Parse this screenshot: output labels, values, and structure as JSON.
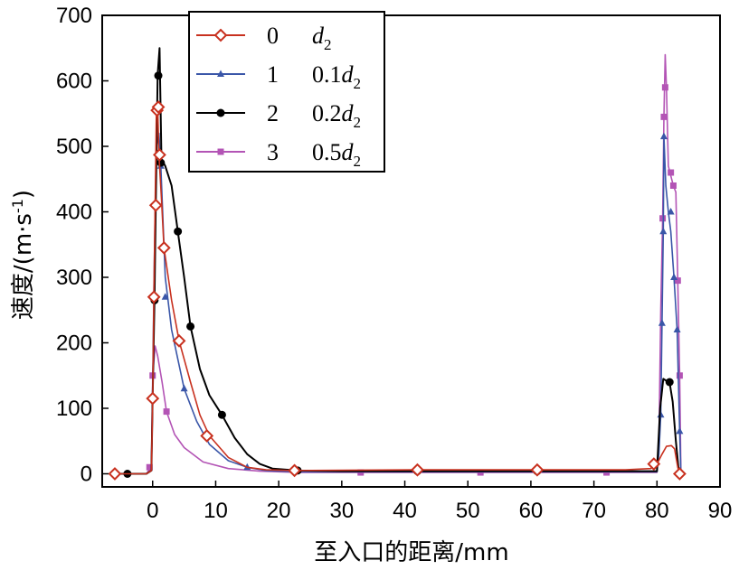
{
  "chart_data": {
    "type": "line",
    "xlabel": "至入口的距离/mm",
    "ylabel_main": "速度/(m·s",
    "ylabel_sup": "-1",
    "ylabel_close": ")",
    "xlim": [
      -8,
      90
    ],
    "ylim": [
      -20,
      700
    ],
    "xticks": [
      0,
      10,
      20,
      30,
      40,
      50,
      60,
      70,
      80,
      90
    ],
    "yticks": [
      0,
      100,
      200,
      300,
      400,
      500,
      600,
      700
    ],
    "legend_position": "top-center",
    "series": [
      {
        "id": "0",
        "coef": "",
        "sub": "2",
        "color": "#c8311f",
        "marker": "diamond",
        "line": [
          [
            -6,
            0
          ],
          [
            -1,
            0
          ],
          [
            -0.2,
            5
          ],
          [
            0,
            115
          ],
          [
            0.2,
            270
          ],
          [
            0.4,
            410
          ],
          [
            0.6,
            555
          ],
          [
            0.8,
            560
          ],
          [
            1,
            487
          ],
          [
            1.4,
            420
          ],
          [
            1.8,
            345
          ],
          [
            3,
            265
          ],
          [
            4.2,
            203
          ],
          [
            6,
            140
          ],
          [
            7.5,
            90
          ],
          [
            9,
            58
          ],
          [
            12,
            25
          ],
          [
            15,
            10
          ],
          [
            18,
            6
          ],
          [
            22.5,
            5
          ],
          [
            42,
            6
          ],
          [
            61,
            6
          ],
          [
            75,
            6
          ],
          [
            79,
            8
          ],
          [
            80,
            15
          ],
          [
            80.8,
            30
          ],
          [
            81.5,
            42
          ],
          [
            82.3,
            43
          ],
          [
            82.8,
            38
          ],
          [
            83.3,
            10
          ],
          [
            83.6,
            0
          ]
        ],
        "markers": [
          [
            -6,
            0
          ],
          [
            0,
            115
          ],
          [
            0.2,
            270
          ],
          [
            0.5,
            410
          ],
          [
            0.7,
            555
          ],
          [
            0.9,
            560
          ],
          [
            1.1,
            487
          ],
          [
            1.8,
            345
          ],
          [
            4.2,
            203
          ],
          [
            8.6,
            58
          ],
          [
            22.5,
            5
          ],
          [
            42,
            6
          ],
          [
            61,
            6
          ],
          [
            79.5,
            15
          ],
          [
            83.6,
            0
          ]
        ]
      },
      {
        "id": "1",
        "coef": "0.1",
        "sub": "2",
        "color": "#3a56a8",
        "marker": "triangle",
        "line": [
          [
            -6,
            0
          ],
          [
            -1,
            0
          ],
          [
            -0.2,
            5
          ],
          [
            0,
            130
          ],
          [
            0.2,
            280
          ],
          [
            0.4,
            400
          ],
          [
            0.6,
            500
          ],
          [
            1,
            520
          ],
          [
            1.3,
            470
          ],
          [
            2,
            300
          ],
          [
            3,
            220
          ],
          [
            4,
            175
          ],
          [
            5,
            130
          ],
          [
            7,
            80
          ],
          [
            9,
            45
          ],
          [
            12,
            20
          ],
          [
            15,
            10
          ],
          [
            18,
            5
          ],
          [
            23,
            3
          ],
          [
            80,
            3
          ],
          [
            80.3,
            30
          ],
          [
            80.6,
            90
          ],
          [
            80.8,
            230
          ],
          [
            81,
            370
          ],
          [
            81.1,
            515
          ],
          [
            81.4,
            440
          ],
          [
            81.8,
            400
          ],
          [
            82.2,
            370
          ],
          [
            82.7,
            300
          ],
          [
            83.2,
            220
          ],
          [
            83.6,
            65
          ],
          [
            83.8,
            0
          ]
        ],
        "markers": [
          [
            1.3,
            470
          ],
          [
            2,
            270
          ],
          [
            5,
            130
          ],
          [
            15,
            10
          ],
          [
            80.6,
            90
          ],
          [
            80.8,
            230
          ],
          [
            81,
            370
          ],
          [
            81.1,
            515
          ],
          [
            82.2,
            400
          ],
          [
            82.7,
            300
          ],
          [
            83.2,
            220
          ],
          [
            83.6,
            65
          ]
        ]
      },
      {
        "id": "2",
        "coef": "0.2",
        "sub": "2",
        "color": "#000000",
        "marker": "circle",
        "line": [
          [
            -6,
            0
          ],
          [
            -1,
            0
          ],
          [
            -0.2,
            5
          ],
          [
            0,
            120
          ],
          [
            0.3,
            265
          ],
          [
            0.5,
            410
          ],
          [
            0.8,
            610
          ],
          [
            1.1,
            650
          ],
          [
            1.4,
            480
          ],
          [
            2,
            470
          ],
          [
            3,
            440
          ],
          [
            4,
            370
          ],
          [
            5,
            300
          ],
          [
            6,
            225
          ],
          [
            7.5,
            160
          ],
          [
            9,
            120
          ],
          [
            11,
            90
          ],
          [
            13,
            55
          ],
          [
            15,
            30
          ],
          [
            17,
            15
          ],
          [
            19,
            8
          ],
          [
            23,
            5
          ],
          [
            30,
            4
          ],
          [
            80,
            4
          ],
          [
            80.5,
            100
          ],
          [
            81,
            145
          ],
          [
            81.5,
            142
          ],
          [
            82,
            140
          ],
          [
            82.5,
            110
          ],
          [
            83,
            50
          ],
          [
            83.5,
            0
          ]
        ],
        "markers": [
          [
            -4,
            0
          ],
          [
            0.3,
            265
          ],
          [
            0.5,
            410
          ],
          [
            0.9,
            608
          ],
          [
            1.3,
            475
          ],
          [
            4,
            370
          ],
          [
            6,
            225
          ],
          [
            11,
            90
          ],
          [
            23,
            5
          ],
          [
            42,
            4
          ],
          [
            61,
            4
          ],
          [
            82,
            140
          ],
          [
            83.5,
            0
          ]
        ]
      },
      {
        "id": "3",
        "coef": "0.5",
        "sub": "2",
        "color": "#b354b5",
        "marker": "square",
        "line": [
          [
            -6,
            0
          ],
          [
            -1,
            0
          ],
          [
            -0.2,
            10
          ],
          [
            0,
            150
          ],
          [
            0.4,
            195
          ],
          [
            0.8,
            180
          ],
          [
            1.5,
            140
          ],
          [
            2.2,
            95
          ],
          [
            3.5,
            60
          ],
          [
            5,
            40
          ],
          [
            8,
            18
          ],
          [
            12,
            8
          ],
          [
            17,
            4
          ],
          [
            23,
            2
          ],
          [
            33,
            2
          ],
          [
            60,
            2
          ],
          [
            80,
            2
          ],
          [
            80.3,
            40
          ],
          [
            80.6,
            250
          ],
          [
            80.9,
            390
          ],
          [
            81.1,
            545
          ],
          [
            81.3,
            640
          ],
          [
            81.5,
            590
          ],
          [
            81.8,
            470
          ],
          [
            82.2,
            455
          ],
          [
            82.6,
            440
          ],
          [
            83,
            430
          ],
          [
            83.3,
            295
          ],
          [
            83.6,
            150
          ],
          [
            83.8,
            0
          ]
        ],
        "markers": [
          [
            -0.5,
            10
          ],
          [
            0,
            150
          ],
          [
            2.2,
            95
          ],
          [
            33,
            2
          ],
          [
            52,
            2
          ],
          [
            72,
            2
          ],
          [
            80.9,
            390
          ],
          [
            81.1,
            545
          ],
          [
            81.3,
            590
          ],
          [
            82.2,
            460
          ],
          [
            82.6,
            440
          ],
          [
            83.3,
            295
          ],
          [
            83.6,
            150
          ]
        ]
      }
    ]
  }
}
